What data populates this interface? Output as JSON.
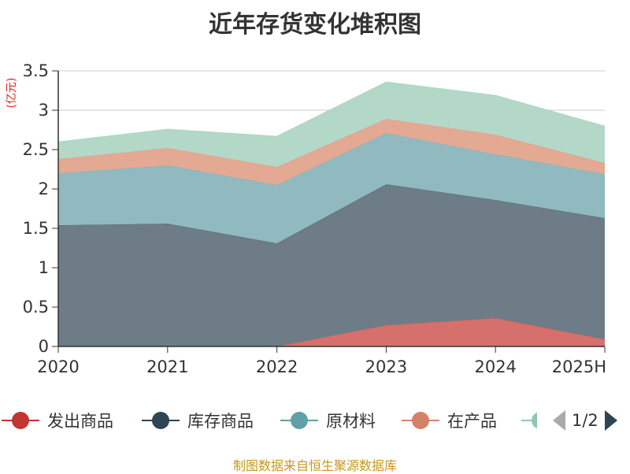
{
  "title": "近年存货变化堆积图",
  "unit_label": "(亿元)",
  "source_text": "制图数据来自恒生聚源数据库",
  "colors": {
    "title": "#333333",
    "axis": "#333333",
    "grid": "#cccccc",
    "unit": "#e02020",
    "source": "#c8961e",
    "pager_inactive": "#aaaaaa",
    "pager_active": "#2f4554"
  },
  "legend": {
    "page_indicator": "1/2",
    "prev_icon": "triangle-left-icon",
    "next_icon": "triangle-right-icon"
  },
  "chart_data": {
    "type": "area",
    "stacked": true,
    "title": "近年存货变化堆积图",
    "ylabel": "(亿元)",
    "ylim": [
      0,
      3.5
    ],
    "yticks": [
      "0",
      "0.5",
      "1",
      "1.5",
      "2",
      "2.5",
      "3",
      "3.5"
    ],
    "categories": [
      "2020",
      "2021",
      "2022",
      "2023",
      "2024",
      "2025H"
    ],
    "grid": true,
    "legend_position": "bottom",
    "series": [
      {
        "name": "发出商品",
        "color": "#c23531",
        "fill": "#d6706d",
        "values": [
          0,
          0,
          0,
          0.27,
          0.36,
          0.09
        ]
      },
      {
        "name": "库存商品",
        "color": "#2f4554",
        "fill": "#6d7c87",
        "values": [
          1.54,
          1.56,
          1.31,
          1.79,
          1.5,
          1.54
        ]
      },
      {
        "name": "原材料",
        "color": "#61a0a8",
        "fill": "#90babf",
        "values": [
          0.66,
          0.74,
          0.74,
          0.65,
          0.58,
          0.56
        ]
      },
      {
        "name": "在产品",
        "color": "#d48265",
        "fill": "#e4a993",
        "values": [
          0.18,
          0.22,
          0.23,
          0.18,
          0.25,
          0.14
        ]
      },
      {
        "name": "",
        "color": "#91c7ae",
        "fill": "#b3d8c8",
        "values": [
          0.22,
          0.24,
          0.39,
          0.47,
          0.5,
          0.47
        ]
      }
    ]
  }
}
